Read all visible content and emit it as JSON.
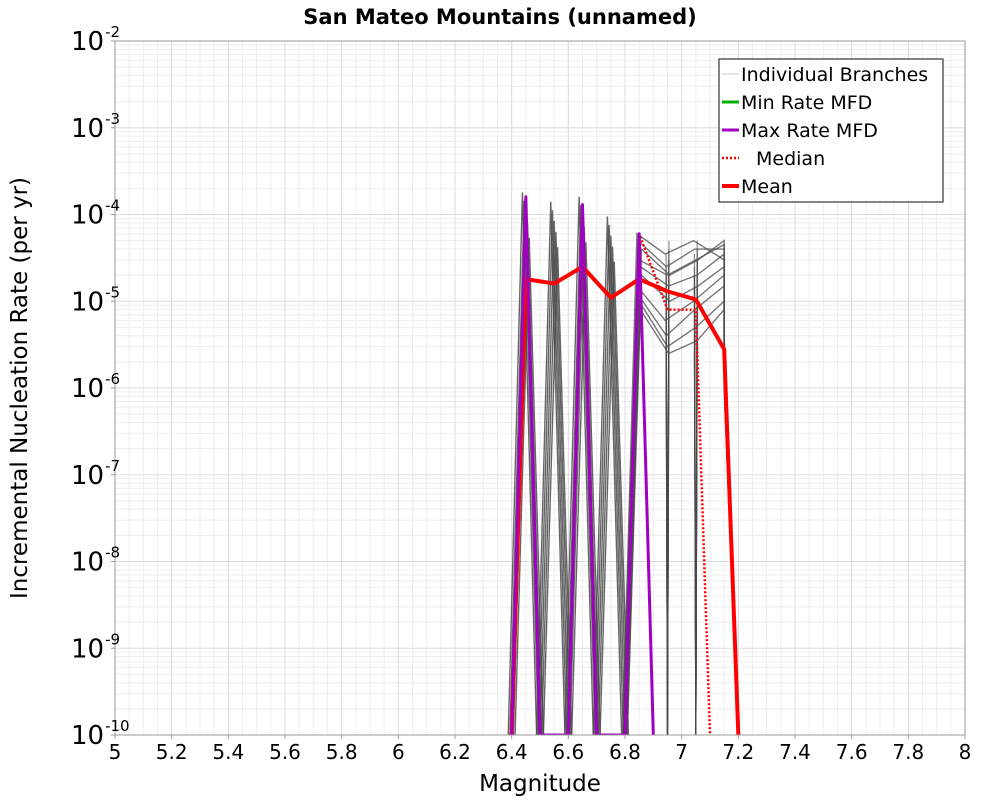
{
  "chart_data": {
    "type": "line",
    "title": "San Mateo Mountains (unnamed)",
    "xlabel": "Magnitude",
    "ylabel": "Incremental Nucleation Rate (per yr)",
    "xlim": [
      5,
      8
    ],
    "ylim_log10": [
      -10,
      -2
    ],
    "x_ticks": [
      "5",
      "5.2",
      "5.4",
      "5.6",
      "5.8",
      "6",
      "6.2",
      "6.4",
      "6.6",
      "6.8",
      "7",
      "7.2",
      "7.4",
      "7.6",
      "7.8",
      "8"
    ],
    "y_ticks": [
      {
        "base": "10",
        "exp": "-2"
      },
      {
        "base": "10",
        "exp": "-3"
      },
      {
        "base": "10",
        "exp": "-4"
      },
      {
        "base": "10",
        "exp": "-5"
      },
      {
        "base": "10",
        "exp": "-6"
      },
      {
        "base": "10",
        "exp": "-7"
      },
      {
        "base": "10",
        "exp": "-8"
      },
      {
        "base": "10",
        "exp": "-9"
      },
      {
        "base": "10",
        "exp": "-10"
      }
    ],
    "grid": true,
    "legend_position": "top-right",
    "legend": [
      {
        "label": "Individual Branches",
        "color": "#c8c8c8",
        "style": "solid"
      },
      {
        "label": "Min Rate MFD",
        "color": "#00b000",
        "style": "solid"
      },
      {
        "label": "Max Rate MFD",
        "color": "#a000c0",
        "style": "solid"
      },
      {
        "label": "Median",
        "color": "#ff0000",
        "style": "dotted"
      },
      {
        "label": "Mean",
        "color": "#ff0000",
        "style": "solid"
      }
    ],
    "series": [
      {
        "name": "Mean",
        "color": "#ff0000",
        "points": [
          [
            6.4,
            1e-10
          ],
          [
            6.45,
            1.8e-05
          ],
          [
            6.55,
            1.6e-05
          ],
          [
            6.65,
            2.5e-05
          ],
          [
            6.75,
            1.1e-05
          ],
          [
            6.85,
            1.8e-05
          ],
          [
            6.95,
            1.3e-05
          ],
          [
            7.05,
            1.05e-05
          ],
          [
            7.15,
            2.8e-06
          ],
          [
            7.2,
            1e-10
          ]
        ]
      },
      {
        "name": "Median",
        "color": "#ff0000",
        "points": [
          [
            6.6,
            1e-10
          ],
          [
            6.65,
            0.00012
          ],
          [
            6.7,
            1e-10
          ],
          [
            6.8,
            1e-10
          ],
          [
            6.85,
            6e-05
          ],
          [
            6.95,
            8e-06
          ],
          [
            7.05,
            8e-06
          ],
          [
            7.1,
            1e-10
          ]
        ]
      },
      {
        "name": "Max Rate MFD",
        "color": "#a000c0",
        "points": [
          [
            6.4,
            1e-10
          ],
          [
            6.45,
            0.00016
          ],
          [
            6.5,
            1e-10
          ],
          [
            6.6,
            1e-10
          ],
          [
            6.65,
            0.00013
          ],
          [
            6.7,
            1e-10
          ],
          [
            6.8,
            1e-10
          ],
          [
            6.85,
            6e-05
          ],
          [
            6.9,
            1e-10
          ]
        ]
      }
    ],
    "branches": {
      "name": "Individual Branches",
      "color": "#4a4a4a",
      "spikes": [
        {
          "x": 6.45,
          "peak": 0.00018
        },
        {
          "x": 6.55,
          "peak": 0.00014
        },
        {
          "x": 6.65,
          "peak": 0.00016
        },
        {
          "x": 6.75,
          "peak": 9.5e-05
        }
      ],
      "tails": [
        [
          6e-05,
          3.5e-05,
          5e-05,
          3e-05,
          3.5e-06
        ],
        [
          5e-05,
          2.5e-05,
          4e-05,
          4e-05,
          4e-06
        ],
        [
          3e-05,
          2e-05,
          3e-05,
          4.5e-05,
          2e-06
        ],
        [
          2.5e-05,
          1.5e-05,
          2e-05,
          3.5e-05,
          1.5e-06
        ],
        [
          2e-05,
          1e-05,
          1.5e-05,
          2.5e-05,
          1e-06
        ],
        [
          1.5e-05,
          6e-06,
          1e-05,
          2e-05,
          3e-06
        ],
        [
          1.2e-05,
          4e-06,
          8e-06,
          1.5e-05,
          2e-06
        ],
        [
          1e-05,
          3e-06,
          5e-06,
          1e-05,
          1.2e-06
        ],
        [
          8e-06,
          2.5e-06,
          3.5e-06,
          8e-06,
          1e-06
        ],
        [
          4e-05,
          2e-05,
          3e-05,
          5e-05,
          4e-06
        ]
      ],
      "tail_x": [
        6.85,
        6.95,
        7.05,
        7.15,
        7.15
      ]
    }
  }
}
